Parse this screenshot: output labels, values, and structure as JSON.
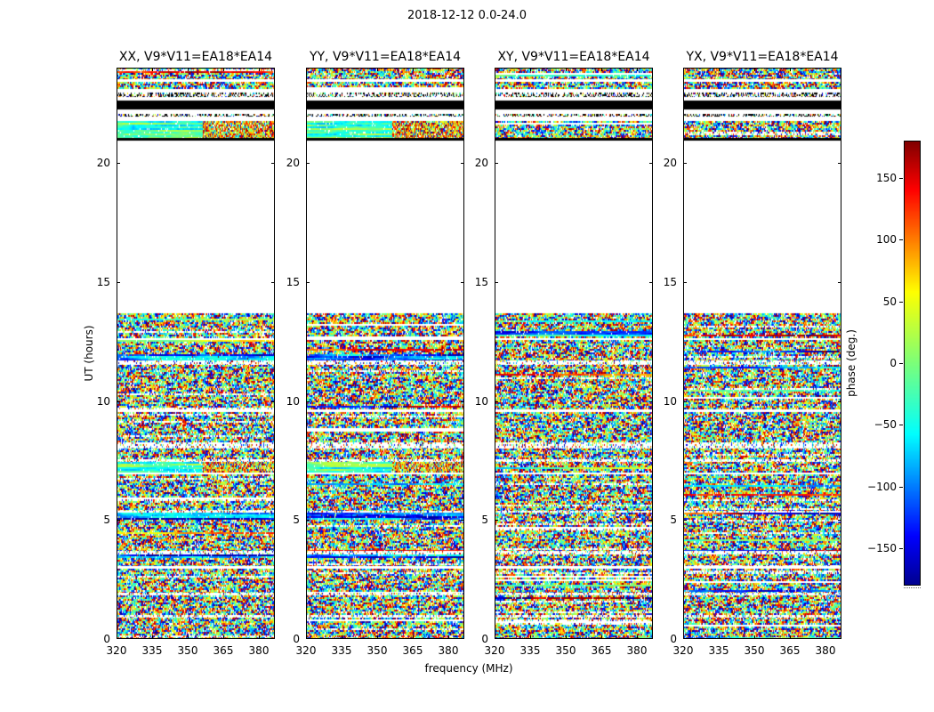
{
  "chart_data": {
    "type": "heatmap",
    "title": "2018-12-12 0.0-24.0",
    "xlabel": "frequency (MHz)",
    "ylabel": "UT (hours)",
    "panels": [
      {
        "pol": "XX",
        "title": "XX, V9*V11=EA18*EA14",
        "seed": 20181212
      },
      {
        "pol": "YY",
        "title": "YY, V9*V11=EA18*EA14",
        "seed": 8675309
      },
      {
        "pol": "XY",
        "title": "XY, V9*V11=EA18*EA14",
        "seed": 424242
      },
      {
        "pol": "YX",
        "title": "YX, V9*V11=EA18*EA14",
        "seed": 1357911
      }
    ],
    "xlim": [
      320,
      386.75
    ],
    "xticks": [
      320,
      335,
      350,
      365,
      380
    ],
    "ylim": [
      0,
      24
    ],
    "yticks": [
      0,
      5,
      10,
      15,
      20
    ],
    "grid": false,
    "legend": "none",
    "colorbar": {
      "label": "phase (deg.)",
      "min": -180,
      "max": 180,
      "ticks": [
        -150,
        -100,
        -50,
        0,
        50,
        100,
        150
      ]
    },
    "colormap": {
      "name": "jet",
      "stops": [
        [
          0,
          0,
          0,
          143
        ],
        [
          0.11,
          0,
          0,
          255
        ],
        [
          0.34,
          0,
          255,
          255
        ],
        [
          0.5,
          124,
          255,
          121
        ],
        [
          0.66,
          255,
          255,
          0
        ],
        [
          0.89,
          255,
          0,
          0
        ],
        [
          1,
          128,
          0,
          0
        ]
      ]
    },
    "time_bands": [
      {
        "start": 0.0,
        "end": 0.9,
        "type": "noise"
      },
      {
        "start": 0.9,
        "end": 1.0,
        "type": "light"
      },
      {
        "start": 1.0,
        "end": 1.85,
        "type": "noise"
      },
      {
        "start": 1.85,
        "end": 1.95,
        "type": "light"
      },
      {
        "start": 1.95,
        "end": 2.95,
        "type": "noise"
      },
      {
        "start": 2.95,
        "end": 3.05,
        "type": "white"
      },
      {
        "start": 3.05,
        "end": 3.4,
        "type": "noise"
      },
      {
        "start": 3.4,
        "end": 3.55,
        "type": "streak_blue",
        "panels": [
          "XX",
          "YY"
        ]
      },
      {
        "start": 3.55,
        "end": 3.7,
        "type": "light"
      },
      {
        "start": 3.7,
        "end": 5.0,
        "type": "noise"
      },
      {
        "start": 5.0,
        "end": 5.3,
        "type": "streak_blue",
        "panels": [
          "XX",
          "YY"
        ]
      },
      {
        "start": 5.3,
        "end": 5.4,
        "type": "light"
      },
      {
        "start": 5.4,
        "end": 6.9,
        "type": "noise"
      },
      {
        "start": 6.9,
        "end": 7.0,
        "type": "white"
      },
      {
        "start": 7.0,
        "end": 7.45,
        "type": "streak_mix",
        "panels": [
          "XX",
          "YY"
        ]
      },
      {
        "start": 7.45,
        "end": 7.55,
        "type": "light"
      },
      {
        "start": 7.55,
        "end": 8.0,
        "type": "noise"
      },
      {
        "start": 8.0,
        "end": 8.25,
        "type": "light"
      },
      {
        "start": 8.25,
        "end": 9.55,
        "type": "noise"
      },
      {
        "start": 9.55,
        "end": 9.65,
        "type": "white"
      },
      {
        "start": 9.65,
        "end": 11.5,
        "type": "noise"
      },
      {
        "start": 11.5,
        "end": 11.7,
        "type": "light"
      },
      {
        "start": 11.7,
        "end": 11.95,
        "type": "streak_blue",
        "panels": [
          "XX",
          "YY"
        ]
      },
      {
        "start": 11.95,
        "end": 12.55,
        "type": "noise"
      },
      {
        "start": 12.55,
        "end": 12.65,
        "type": "white"
      },
      {
        "start": 12.65,
        "end": 13.7,
        "type": "noise"
      },
      {
        "start": 13.7,
        "end": 20.95,
        "type": "white"
      },
      {
        "start": 20.95,
        "end": 21.05,
        "type": "black"
      },
      {
        "start": 21.05,
        "end": 21.75,
        "type": "streak_mix",
        "panels": [
          "XX",
          "YY"
        ]
      },
      {
        "start": 21.75,
        "end": 21.95,
        "type": "white"
      },
      {
        "start": 21.95,
        "end": 22.05,
        "type": "sparse"
      },
      {
        "start": 22.05,
        "end": 22.25,
        "type": "white"
      },
      {
        "start": 22.25,
        "end": 22.6,
        "type": "black"
      },
      {
        "start": 22.6,
        "end": 22.75,
        "type": "white"
      },
      {
        "start": 22.75,
        "end": 22.95,
        "type": "sparse"
      },
      {
        "start": 22.95,
        "end": 23.1,
        "type": "white"
      },
      {
        "start": 23.1,
        "end": 23.4,
        "type": "noise"
      },
      {
        "start": 23.4,
        "end": 23.5,
        "type": "white"
      },
      {
        "start": 23.5,
        "end": 24.0,
        "type": "noise"
      }
    ]
  }
}
